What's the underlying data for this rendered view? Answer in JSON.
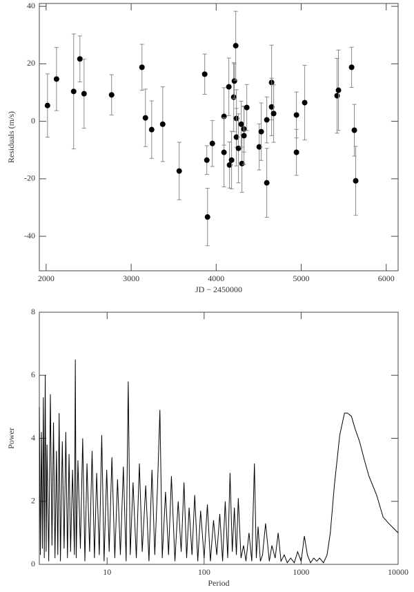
{
  "chart_data": [
    {
      "type": "scatter",
      "xlabel": "JD − 2450000",
      "ylabel": "Residuals (m/s)",
      "xlim": [
        1920,
        6140
      ],
      "ylim": [
        -52,
        41
      ],
      "xticks": [
        2000,
        3000,
        4000,
        5000,
        6000
      ],
      "yticks": [
        -40,
        -20,
        0,
        20,
        40
      ],
      "color": "#000000",
      "error_color": "#888888",
      "x": [
        2016,
        2122,
        2324,
        2397,
        2446,
        2770,
        3127,
        3168,
        3241,
        3371,
        3565,
        3865,
        3890,
        3898,
        3955,
        4092,
        4092,
        4149,
        4157,
        4181,
        4206,
        4214,
        4230,
        4238,
        4238,
        4262,
        4295,
        4303,
        4327,
        4327,
        4360,
        4506,
        4530,
        4595,
        4595,
        4652,
        4652,
        4676,
        4944,
        4944,
        5041,
        5422,
        5438,
        5593,
        5625,
        5641
      ],
      "values": [
        5.5,
        14.7,
        10.4,
        21.7,
        9.6,
        9.2,
        18.8,
        1.2,
        -2.9,
        -1.0,
        -17.3,
        16.4,
        -13.5,
        -33.3,
        -7.7,
        1.7,
        -10.8,
        12,
        -15.2,
        -13.5,
        8.4,
        14,
        26.3,
        1,
        -5.5,
        -9.4,
        -1,
        -14.7,
        -2.7,
        -5,
        4.8,
        -8.9,
        -3.6,
        0.5,
        -21.4,
        13.5,
        5,
        2.7,
        2.2,
        -10.8,
        6.5,
        8.9,
        10.8,
        18.8,
        -3.1,
        -20.7
      ],
      "errors": [
        11,
        11,
        20,
        8,
        12,
        7,
        8,
        10,
        10,
        13,
        10,
        7,
        5,
        10,
        8,
        10,
        12,
        10,
        8,
        10,
        12,
        6,
        12,
        10,
        10,
        12,
        8,
        10,
        8,
        10,
        8,
        8,
        10,
        8,
        12,
        13,
        10,
        10,
        8,
        8,
        13,
        13,
        14,
        7,
        9,
        12
      ]
    },
    {
      "type": "line",
      "xlabel": "Period",
      "ylabel": "Power",
      "xscale": "log",
      "xlim": [
        2,
        10000
      ],
      "ylim": [
        0,
        8
      ],
      "xticks": [
        10,
        100,
        1000,
        10000
      ],
      "yticks": [
        0,
        2,
        4,
        6,
        8
      ],
      "color": "#000000",
      "x": [
        2.0,
        2.05,
        2.1,
        2.15,
        2.2,
        2.25,
        2.3,
        2.35,
        2.4,
        2.5,
        2.6,
        2.7,
        2.8,
        2.9,
        3.0,
        3.1,
        3.2,
        3.3,
        3.45,
        3.6,
        3.75,
        3.9,
        4.05,
        4.2,
        4.4,
        4.6,
        4.7,
        4.8,
        5.0,
        5.3,
        5.6,
        5.9,
        6.2,
        6.6,
        7.0,
        7.4,
        7.8,
        8.3,
        8.8,
        9.3,
        9.9,
        10.5,
        11.2,
        12,
        12.8,
        13.7,
        14.7,
        15.7,
        16.5,
        17.3,
        18.5,
        20,
        21.5,
        23,
        25,
        27,
        29,
        31,
        33,
        35,
        37,
        40,
        43,
        46,
        50,
        54,
        58,
        62,
        66,
        70,
        75,
        80,
        86,
        92,
        100,
        108,
        116,
        125,
        135,
        145,
        155,
        165,
        175,
        185,
        195,
        205,
        215,
        225,
        240,
        255,
        270,
        290,
        310,
        330,
        345,
        360,
        380,
        400,
        430,
        470,
        500,
        540,
        580,
        620,
        670,
        720,
        780,
        850,
        920,
        1000,
        1080,
        1160,
        1250,
        1350,
        1450,
        1550,
        1700,
        1850,
        2000,
        2200,
        2500,
        2800,
        3000,
        3300,
        3600,
        4000,
        4500,
        5000,
        6000,
        7000,
        8000,
        10000
      ],
      "values": [
        5.0,
        0.3,
        4.2,
        0.5,
        5.3,
        0.2,
        6.0,
        0.4,
        3.8,
        0.1,
        5.4,
        0.6,
        4.5,
        0.2,
        3.6,
        0.3,
        4.8,
        0.1,
        3.9,
        0.5,
        4.2,
        0.2,
        3.5,
        0.4,
        3.0,
        0.3,
        6.5,
        0.2,
        3.3,
        0.5,
        4.0,
        0.1,
        3.2,
        0.4,
        3.6,
        0.2,
        2.9,
        0.3,
        4.1,
        0.1,
        3.0,
        0.4,
        3.4,
        0.2,
        2.7,
        0.3,
        3.1,
        0.1,
        5.8,
        0.3,
        2.6,
        0.2,
        3.2,
        0.4,
        2.5,
        0.1,
        3.0,
        0.3,
        2.4,
        4.9,
        0.2,
        2.3,
        0.3,
        2.8,
        0.1,
        2.0,
        0.4,
        2.6,
        0.2,
        1.8,
        0.3,
        2.2,
        0.1,
        1.7,
        0.2,
        1.9,
        0.1,
        1.4,
        0.3,
        1.6,
        0.1,
        2.0,
        0.2,
        2.9,
        0.4,
        1.8,
        0.3,
        2.1,
        0.2,
        0.6,
        0.1,
        1.0,
        0.1,
        3.2,
        0.2,
        1.2,
        0.1,
        0.3,
        1.3,
        0.1,
        0.6,
        0.2,
        1.0,
        0.1,
        0.3,
        0.05,
        0.2,
        0.05,
        0.4,
        0.1,
        0.9,
        0.3,
        0.05,
        0.2,
        0.1,
        0.2,
        0.05,
        0.3,
        1.0,
        2.5,
        4.1,
        4.8,
        4.8,
        4.7,
        4.3,
        3.9,
        3.3,
        2.8,
        2.2,
        1.5,
        1.3,
        1.0
      ]
    }
  ]
}
